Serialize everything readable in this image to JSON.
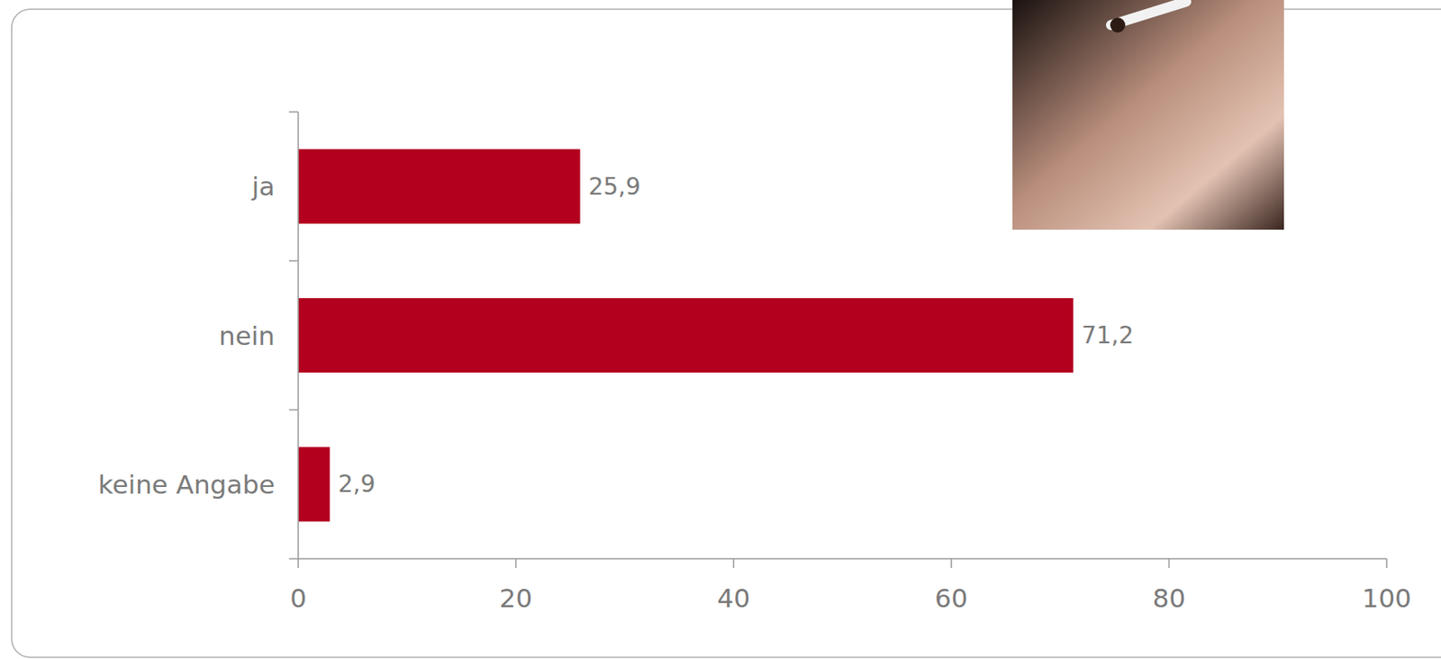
{
  "chart_data": {
    "type": "bar",
    "orientation": "horizontal",
    "categories": [
      "ja",
      "nein",
      "keine Angabe"
    ],
    "values": [
      25.9,
      71.2,
      2.9
    ],
    "value_labels": [
      "25,9",
      "71,2",
      "2,9"
    ],
    "color": "#b3001e",
    "xlim": [
      0,
      100
    ],
    "xticks": [
      0,
      20,
      40,
      60,
      80,
      100
    ],
    "grid": false,
    "data_labels": true
  }
}
